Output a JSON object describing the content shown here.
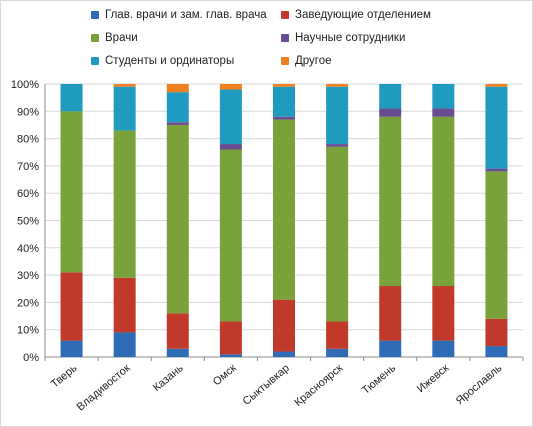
{
  "chart_data": {
    "type": "bar",
    "stacked": true,
    "percent": true,
    "categories": [
      "Тверь",
      "Владивосток",
      "Казань",
      "Омск",
      "Сыктывкар",
      "Красноярск",
      "Тюмень",
      "Ижевск",
      "Ярославль"
    ],
    "y_ticks": [
      "0%",
      "10%",
      "20%",
      "30%",
      "40%",
      "50%",
      "60%",
      "70%",
      "80%",
      "90%",
      "100%"
    ],
    "ylim": [
      0,
      100
    ],
    "grid": true,
    "legend_position": "top",
    "series": [
      {
        "name": "Глав. врачи и зам. глав. врача",
        "color": "#2e6cb5",
        "values": [
          6,
          9,
          3,
          1,
          2,
          3,
          6,
          6,
          4
        ]
      },
      {
        "name": "Заведующие отделением",
        "color": "#c0392b",
        "values": [
          25,
          20,
          13,
          12,
          19,
          10,
          20,
          20,
          10
        ]
      },
      {
        "name": "Врачи",
        "color": "#7aa23a",
        "values": [
          59,
          54,
          69,
          63,
          66,
          64,
          62,
          62,
          54
        ]
      },
      {
        "name": "Научные сотрудники",
        "color": "#6a4c93",
        "values": [
          0,
          0,
          1,
          2,
          1,
          1,
          3,
          3,
          1
        ]
      },
      {
        "name": "Студенты и ординаторы",
        "color": "#1f9bbf",
        "values": [
          10,
          16,
          11,
          20,
          11,
          21,
          9,
          9,
          30
        ]
      },
      {
        "name": "Другое",
        "color": "#f07f1f",
        "values": [
          0,
          1,
          3,
          2,
          1,
          1,
          0,
          0,
          1
        ]
      }
    ]
  }
}
